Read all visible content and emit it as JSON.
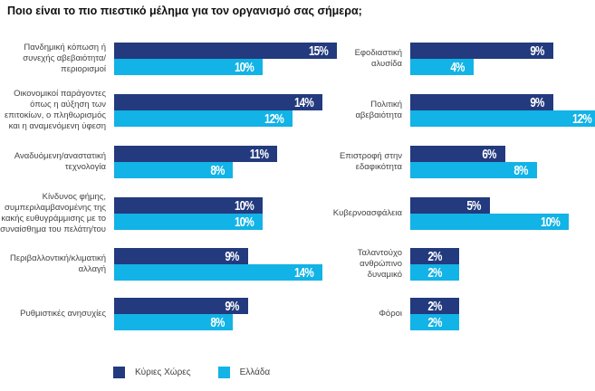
{
  "chart_data": {
    "type": "bar",
    "orientation": "horizontal",
    "title": "Ποιο είναι το πιο πιεστικό μέλημα για τον οργανισμό σας σήμερα;",
    "xlabel": "",
    "ylabel": "",
    "unit": "%",
    "grid": false,
    "legend_position": "bottom-left",
    "series": [
      {
        "name": "Κύριες Χώρες",
        "color": "#233a7e"
      },
      {
        "name": "Ελλάδα",
        "color": "#12b3e6"
      }
    ],
    "panels": [
      {
        "name": "left",
        "categories": [
          "Πανδημική κόπωση ή συνεχής αβεβαιότητα/ περιορισμοί",
          "Οικονομικοί παράγοντες όπως η αύξηση των επιτοκίων, ο πληθωρισμός και η αναμενόμενη ύφεση",
          "Αναδυόμενη/αναστατική τεχνολογία",
          "Κίνδυνος φήμης, συμπεριλαμβανομένης της κακής ευθυγράμμισης με το συναίσθημα του πελάτη/του",
          "Περιβαλλοντική/κλιματική αλλαγή",
          "Ρυθμιστικές ανησυχίες"
        ],
        "label_lines": [
          [
            "Πανδημική κόπωση ή",
            "συνεχής αβεβαιότητα/",
            "περιορισμοί"
          ],
          [
            "Οικονομικοί παράγοντες",
            "όπως η αύξηση των",
            "επιτοκίων, ο πληθωρισμός",
            "και η αναμενόμενη ύφεση"
          ],
          [
            "Αναδυόμενη/αναστατική",
            "τεχνολογία"
          ],
          [
            "Κίνδυνος φήμης,",
            "συμπεριλαμβανομένης της",
            "κακής ευθυγράμμισης με το",
            "συναίσθημα του πελάτη/του"
          ],
          [
            "Περιβαλλοντική/κλιματική",
            "αλλαγή"
          ],
          [
            "Ρυθμιστικές ανησυχίες"
          ]
        ],
        "values": {
          "Κύριες Χώρες": [
            15,
            14,
            11,
            10,
            9,
            9
          ],
          "Ελλάδα": [
            10,
            12,
            8,
            10,
            14,
            8
          ]
        },
        "value_labels": {
          "Κύριες Χώρες": [
            "15%",
            "14%",
            "11%",
            "10%",
            "9%",
            "9%"
          ],
          "Ελλάδα": [
            "10%",
            "12%",
            "8%",
            "10%",
            "14%",
            "8%"
          ]
        }
      },
      {
        "name": "right",
        "categories": [
          "Εφοδιαστική αλυσίδα",
          "Πολιτική αβεβαιότητα",
          "Επιστροφή στην εδαφικότητα",
          "Κυβερνοασφάλεια",
          "Ταλαντούχο ανθρώπινο δυναμικό",
          "Φόροι"
        ],
        "label_lines": [
          [
            "Εφοδιαστική",
            "αλυσίδα"
          ],
          [
            "Πολιτική",
            "αβεβαιότητα"
          ],
          [
            "Επιστροφή στην",
            "εδαφικότητα"
          ],
          [
            "Κυβερνοασφάλεια"
          ],
          [
            "Ταλαντούχο",
            "ανθρώπινο",
            "δυναμικό"
          ],
          [
            "Φόροι"
          ]
        ],
        "values": {
          "Κύριες Χώρες": [
            9,
            9,
            6,
            5,
            2,
            2
          ],
          "Ελλάδα": [
            4,
            12,
            8,
            10,
            2,
            2
          ]
        },
        "value_labels": {
          "Κύριες Χώρες": [
            "9%",
            "9%",
            "6%",
            "5%",
            "2%",
            "2%"
          ],
          "Ελλάδα": [
            "4%",
            "12%",
            "8%",
            "10%",
            "2%",
            "2%"
          ]
        }
      }
    ]
  }
}
